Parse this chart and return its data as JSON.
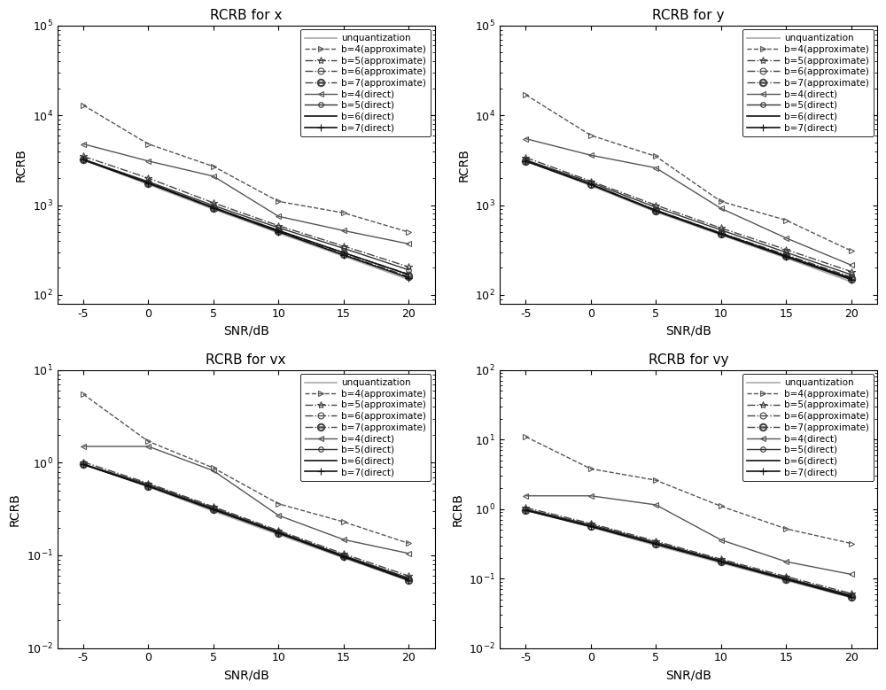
{
  "snr": [
    -5,
    0,
    5,
    10,
    15,
    20
  ],
  "titles": [
    "RCRB for x",
    "RCRB for y",
    "RCRB for vx",
    "RCRB for vy"
  ],
  "xlabel": "SNR/dB",
  "ylabel": "RCRB",
  "x": {
    "unquant": [
      3200,
      1700,
      900,
      490,
      270,
      148
    ],
    "b4_approx": [
      13000,
      4800,
      2700,
      1100,
      820,
      500
    ],
    "b5_approx": [
      3500,
      2000,
      1060,
      590,
      350,
      205
    ],
    "b6_approx": [
      3250,
      1780,
      945,
      520,
      295,
      170
    ],
    "b7_approx": [
      3210,
      1760,
      930,
      508,
      282,
      160
    ],
    "b4_direct": [
      4800,
      3100,
      2100,
      750,
      520,
      370
    ],
    "b5_direct": [
      3250,
      1830,
      990,
      560,
      330,
      190
    ],
    "b6_direct": [
      3210,
      1770,
      940,
      522,
      295,
      168
    ],
    "b7_direct": [
      3200,
      1755,
      928,
      505,
      278,
      155
    ],
    "ylim": [
      80,
      100000
    ]
  },
  "y": {
    "unquant": [
      3100,
      1650,
      840,
      465,
      258,
      140
    ],
    "b4_approx": [
      17000,
      6000,
      3500,
      1100,
      680,
      310
    ],
    "b5_approx": [
      3400,
      1850,
      1000,
      555,
      320,
      182
    ],
    "b6_approx": [
      3150,
      1720,
      880,
      490,
      280,
      158
    ],
    "b7_approx": [
      3100,
      1700,
      870,
      480,
      270,
      150
    ],
    "b4_direct": [
      5500,
      3600,
      2600,
      920,
      430,
      215
    ],
    "b5_direct": [
      3200,
      1790,
      945,
      528,
      298,
      168
    ],
    "b6_direct": [
      3110,
      1710,
      875,
      485,
      272,
      153
    ],
    "b7_direct": [
      3100,
      1695,
      862,
      475,
      265,
      148
    ],
    "ylim": [
      80,
      100000
    ]
  },
  "vx": {
    "unquant": [
      0.96,
      0.55,
      0.3,
      0.168,
      0.094,
      0.053
    ],
    "b4_approx": [
      5.5,
      1.7,
      0.88,
      0.36,
      0.23,
      0.135
    ],
    "b5_approx": [
      1.02,
      0.6,
      0.335,
      0.185,
      0.104,
      0.06
    ],
    "b6_approx": [
      0.97,
      0.568,
      0.318,
      0.177,
      0.099,
      0.056
    ],
    "b7_approx": [
      0.96,
      0.558,
      0.312,
      0.174,
      0.097,
      0.054
    ],
    "b4_direct": [
      1.5,
      1.5,
      0.82,
      0.27,
      0.148,
      0.105
    ],
    "b5_direct": [
      0.97,
      0.585,
      0.325,
      0.18,
      0.1,
      0.057
    ],
    "b6_direct": [
      0.96,
      0.562,
      0.315,
      0.176,
      0.098,
      0.055
    ],
    "b7_direct": [
      0.96,
      0.557,
      0.311,
      0.174,
      0.096,
      0.054
    ],
    "ylim": [
      0.01,
      10
    ]
  },
  "vy": {
    "unquant": [
      0.96,
      0.55,
      0.3,
      0.168,
      0.094,
      0.053
    ],
    "b4_approx": [
      11.0,
      3.8,
      2.6,
      1.1,
      0.52,
      0.32
    ],
    "b5_approx": [
      1.05,
      0.62,
      0.345,
      0.19,
      0.107,
      0.061
    ],
    "b6_approx": [
      0.97,
      0.572,
      0.32,
      0.178,
      0.1,
      0.057
    ],
    "b7_approx": [
      0.96,
      0.562,
      0.314,
      0.175,
      0.098,
      0.055
    ],
    "b4_direct": [
      1.55,
      1.55,
      1.15,
      0.36,
      0.175,
      0.115
    ],
    "b5_direct": [
      1.0,
      0.595,
      0.332,
      0.183,
      0.102,
      0.058
    ],
    "b6_direct": [
      0.97,
      0.57,
      0.318,
      0.177,
      0.099,
      0.056
    ],
    "b7_direct": [
      0.96,
      0.56,
      0.312,
      0.174,
      0.097,
      0.054
    ],
    "ylim": [
      0.01,
      100
    ]
  },
  "series": [
    {
      "key": "unquant",
      "color": "#aaaaaa",
      "ls": "-",
      "lw": 1.2,
      "marker": "None",
      "ms": 6,
      "mfc": "none"
    },
    {
      "key": "b4_approx",
      "color": "#555555",
      "ls": "--",
      "lw": 1.0,
      "marker": ">",
      "ms": 5,
      "mfc": "none"
    },
    {
      "key": "b5_approx",
      "color": "#444444",
      "ls": "-.",
      "lw": 1.0,
      "marker": "*",
      "ms": 6,
      "mfc": "none"
    },
    {
      "key": "b6_approx",
      "color": "#444444",
      "ls": "-.",
      "lw": 1.0,
      "marker": "o",
      "ms": 5,
      "mfc": "none"
    },
    {
      "key": "b7_approx",
      "color": "#444444",
      "ls": "-.",
      "lw": 1.0,
      "marker": "o",
      "ms": 6,
      "mfc": "none"
    },
    {
      "key": "b4_direct",
      "color": "#555555",
      "ls": "-",
      "lw": 1.0,
      "marker": "<",
      "ms": 5,
      "mfc": "none"
    },
    {
      "key": "b5_direct",
      "color": "#333333",
      "ls": "-",
      "lw": 1.0,
      "marker": "o",
      "ms": 4,
      "mfc": "none"
    },
    {
      "key": "b6_direct",
      "color": "#111111",
      "ls": "-",
      "lw": 1.2,
      "marker": "None",
      "ms": 5,
      "mfc": "none"
    },
    {
      "key": "b7_direct",
      "color": "#111111",
      "ls": "-",
      "lw": 1.2,
      "marker": "+",
      "ms": 6,
      "mfc": "none"
    }
  ],
  "legend_labels": {
    "unquant": "unquantization",
    "b4_approx": "b=4(approximate)",
    "b5_approx": "b=5(approximate)",
    "b6_approx": "b=6(approximate)",
    "b7_approx": "b=7(approximate)",
    "b4_direct": "b=4(direct)",
    "b5_direct": "b=5(direct)",
    "b6_direct": "b=6(direct)",
    "b7_direct": "b=7(direct)"
  }
}
